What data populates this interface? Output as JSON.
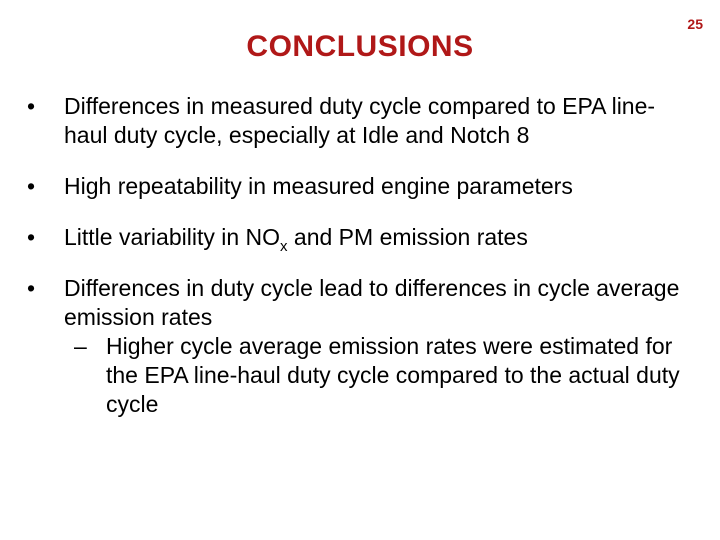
{
  "slide": {
    "title": "CONCLUSIONS",
    "page_number": "25",
    "title_color": "#b01818"
  },
  "bullets": [
    {
      "marker": "•",
      "text": "Differences in measured duty cycle compared to EPA line-haul duty cycle, especially at Idle and Notch 8"
    },
    {
      "marker": "•",
      "text": "High repeatability in measured engine parameters"
    },
    {
      "marker": "•",
      "text_before": "Little variability in NO",
      "subscript": "x",
      "text_after": " and PM emission rates"
    },
    {
      "marker": "•",
      "text": "Differences in duty cycle lead to differences in cycle average emission rates",
      "sub_bullets": [
        {
          "marker": "–",
          "text": "Higher cycle average emission rates were estimated for the EPA line-haul duty cycle compared to the actual duty cycle"
        }
      ]
    }
  ]
}
